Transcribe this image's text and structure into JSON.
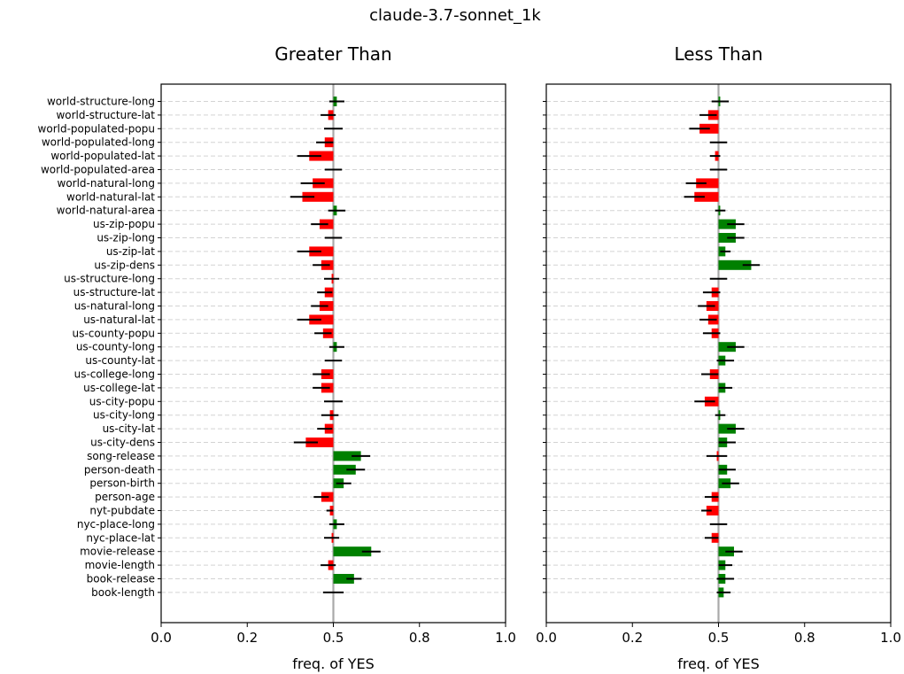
{
  "figure_title": "claude-3.7-sonnet_1k",
  "colors": {
    "positive": "#008000",
    "negative": "#ff0000",
    "error_bar": "#000000",
    "reference_line": "#a9a9a9",
    "grid": "#d3d3d3"
  },
  "chart_data": [
    {
      "type": "bar",
      "orientation": "horizontal",
      "title": "Greater Than",
      "xlabel": "freq. of YES",
      "xlim": [
        0.0,
        1.0
      ],
      "xticks": [
        "0.0",
        "0.2",
        "0.5",
        "0.8",
        "1.0"
      ],
      "reference_value": 0.5,
      "grid": "horizontal dashed",
      "categories": [
        "world-structure-long",
        "world-structure-lat",
        "world-populated-popu",
        "world-populated-long",
        "world-populated-lat",
        "world-populated-area",
        "world-natural-long",
        "world-natural-lat",
        "world-natural-area",
        "us-zip-popu",
        "us-zip-long",
        "us-zip-lat",
        "us-zip-dens",
        "us-structure-long",
        "us-structure-lat",
        "us-natural-long",
        "us-natural-lat",
        "us-county-popu",
        "us-county-long",
        "us-county-lat",
        "us-college-long",
        "us-college-lat",
        "us-city-popu",
        "us-city-long",
        "us-city-lat",
        "us-city-dens",
        "song-release",
        "person-death",
        "person-birth",
        "person-age",
        "nyt-pubdate",
        "nyc-place-long",
        "nyc-place-lat",
        "movie-release",
        "movie-length",
        "book-release",
        "book-length"
      ],
      "values": [
        0.51,
        0.485,
        0.5,
        0.475,
        0.43,
        0.5,
        0.44,
        0.41,
        0.51,
        0.46,
        0.5,
        0.43,
        0.465,
        0.495,
        0.475,
        0.46,
        0.43,
        0.47,
        0.51,
        0.5,
        0.465,
        0.465,
        0.5,
        0.49,
        0.475,
        0.42,
        0.58,
        0.565,
        0.53,
        0.465,
        0.49,
        0.51,
        0.495,
        0.61,
        0.485,
        0.56,
        0.5
      ],
      "errors": [
        0.022,
        0.022,
        0.027,
        0.025,
        0.035,
        0.025,
        0.035,
        0.035,
        0.025,
        0.025,
        0.025,
        0.035,
        0.025,
        0.022,
        0.022,
        0.025,
        0.035,
        0.025,
        0.022,
        0.025,
        0.025,
        0.025,
        0.027,
        0.025,
        0.022,
        0.035,
        0.027,
        0.027,
        0.022,
        0.022,
        0.01,
        0.022,
        0.022,
        0.027,
        0.022,
        0.022,
        0.03
      ]
    },
    {
      "type": "bar",
      "orientation": "horizontal",
      "title": "Less Than",
      "xlabel": "freq. of YES",
      "xlim": [
        0.0,
        1.0
      ],
      "xticks": [
        "0.0",
        "0.2",
        "0.5",
        "0.8",
        "1.0"
      ],
      "reference_value": 0.5,
      "grid": "horizontal dashed",
      "categories": [
        "world-structure-long",
        "world-structure-lat",
        "world-populated-popu",
        "world-populated-long",
        "world-populated-lat",
        "world-populated-area",
        "world-natural-long",
        "world-natural-lat",
        "world-natural-area",
        "us-zip-popu",
        "us-zip-long",
        "us-zip-lat",
        "us-zip-dens",
        "us-structure-long",
        "us-structure-lat",
        "us-natural-long",
        "us-natural-lat",
        "us-county-popu",
        "us-county-long",
        "us-county-lat",
        "us-college-long",
        "us-college-lat",
        "us-city-popu",
        "us-city-long",
        "us-city-lat",
        "us-city-dens",
        "song-release",
        "person-death",
        "person-birth",
        "person-age",
        "nyt-pubdate",
        "nyc-place-long",
        "nyc-place-lat",
        "movie-release",
        "movie-length",
        "book-release",
        "book-length"
      ],
      "values": [
        0.505,
        0.47,
        0.445,
        0.5,
        0.49,
        0.5,
        0.435,
        0.43,
        0.505,
        0.55,
        0.55,
        0.52,
        0.595,
        0.5,
        0.48,
        0.465,
        0.47,
        0.48,
        0.55,
        0.52,
        0.475,
        0.52,
        0.46,
        0.505,
        0.55,
        0.525,
        0.495,
        0.525,
        0.535,
        0.48,
        0.465,
        0.5,
        0.48,
        0.545,
        0.52,
        0.52,
        0.515
      ],
      "errors": [
        0.025,
        0.025,
        0.03,
        0.025,
        0.015,
        0.025,
        0.03,
        0.03,
        0.015,
        0.025,
        0.025,
        0.015,
        0.025,
        0.025,
        0.025,
        0.025,
        0.025,
        0.025,
        0.025,
        0.025,
        0.025,
        0.02,
        0.03,
        0.015,
        0.025,
        0.025,
        0.03,
        0.025,
        0.025,
        0.02,
        0.015,
        0.025,
        0.02,
        0.025,
        0.02,
        0.025,
        0.02
      ]
    }
  ]
}
